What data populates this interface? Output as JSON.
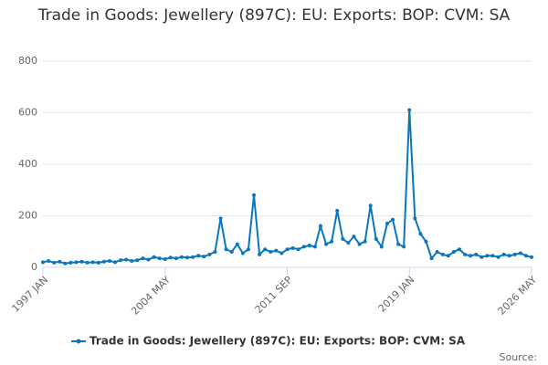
{
  "chart_data": {
    "type": "line",
    "title": "Trade in Goods: Jewellery (897C): EU: Exports: BOP: CVM: SA",
    "source": "Source:",
    "x": [
      "1997 JAN",
      "1997 MAY",
      "1997 SEP",
      "1998 JAN",
      "1998 MAY",
      "1998 SEP",
      "1999 JAN",
      "1999 MAY",
      "1999 SEP",
      "2000 JAN",
      "2000 MAY",
      "2000 SEP",
      "2001 JAN",
      "2001 MAY",
      "2001 SEP",
      "2002 JAN",
      "2002 MAY",
      "2002 SEP",
      "2003 JAN",
      "2003 MAY",
      "2003 SEP",
      "2004 JAN",
      "2004 MAY",
      "2004 SEP",
      "2005 JAN",
      "2005 MAY",
      "2005 SEP",
      "2006 JAN",
      "2006 MAY",
      "2006 SEP",
      "2007 JAN",
      "2007 MAY",
      "2007 SEP",
      "2008 JAN",
      "2008 MAY",
      "2008 SEP",
      "2009 JAN",
      "2009 MAY",
      "2009 SEP",
      "2010 JAN",
      "2010 MAY",
      "2010 SEP",
      "2011 JAN",
      "2011 MAY",
      "2011 SEP",
      "2012 JAN",
      "2012 MAY",
      "2012 SEP",
      "2013 JAN",
      "2013 MAY",
      "2013 SEP",
      "2014 JAN",
      "2014 MAY",
      "2014 SEP",
      "2015 JAN",
      "2015 MAY",
      "2015 SEP",
      "2016 JAN",
      "2016 MAY",
      "2016 SEP",
      "2017 JAN",
      "2017 MAY",
      "2017 SEP",
      "2018 JAN",
      "2018 MAY",
      "2018 SEP",
      "2019 JAN",
      "2019 MAY",
      "2019 SEP",
      "2020 JAN",
      "2020 MAY",
      "2020 SEP",
      "2021 JAN",
      "2021 MAY",
      "2021 SEP",
      "2022 JAN",
      "2022 MAY",
      "2022 SEP",
      "2023 JAN",
      "2023 MAY",
      "2023 SEP",
      "2024 JAN",
      "2024 MAY",
      "2024 SEP",
      "2025 JAN",
      "2025 MAY",
      "2025 SEP",
      "2026 JAN",
      "2026 MAY"
    ],
    "series": [
      {
        "name": "Trade in Goods: Jewellery (897C): EU: Exports: BOP: CVM: SA",
        "color": "#0a77bd",
        "values": [
          20,
          25,
          18,
          22,
          15,
          18,
          20,
          22,
          18,
          20,
          18,
          22,
          25,
          20,
          28,
          30,
          25,
          28,
          35,
          30,
          40,
          35,
          32,
          38,
          35,
          40,
          38,
          40,
          45,
          42,
          50,
          60,
          190,
          70,
          60,
          90,
          55,
          70,
          280,
          50,
          70,
          60,
          65,
          55,
          70,
          75,
          70,
          80,
          85,
          80,
          160,
          90,
          100,
          220,
          110,
          95,
          120,
          90,
          100,
          240,
          110,
          80,
          170,
          185,
          90,
          80,
          610,
          190,
          130,
          100,
          35,
          60,
          50,
          45,
          60,
          70,
          50,
          45,
          50,
          40,
          45,
          45,
          40,
          50,
          45,
          50,
          55,
          45,
          40
        ]
      }
    ],
    "xticks": [
      "1997 JAN",
      "2004 MAY",
      "2011 SEP",
      "2019 JAN",
      "2026 MAY"
    ],
    "ylim": [
      0,
      800
    ],
    "yticks": [
      0,
      200,
      400,
      600,
      800
    ],
    "grid": true
  }
}
